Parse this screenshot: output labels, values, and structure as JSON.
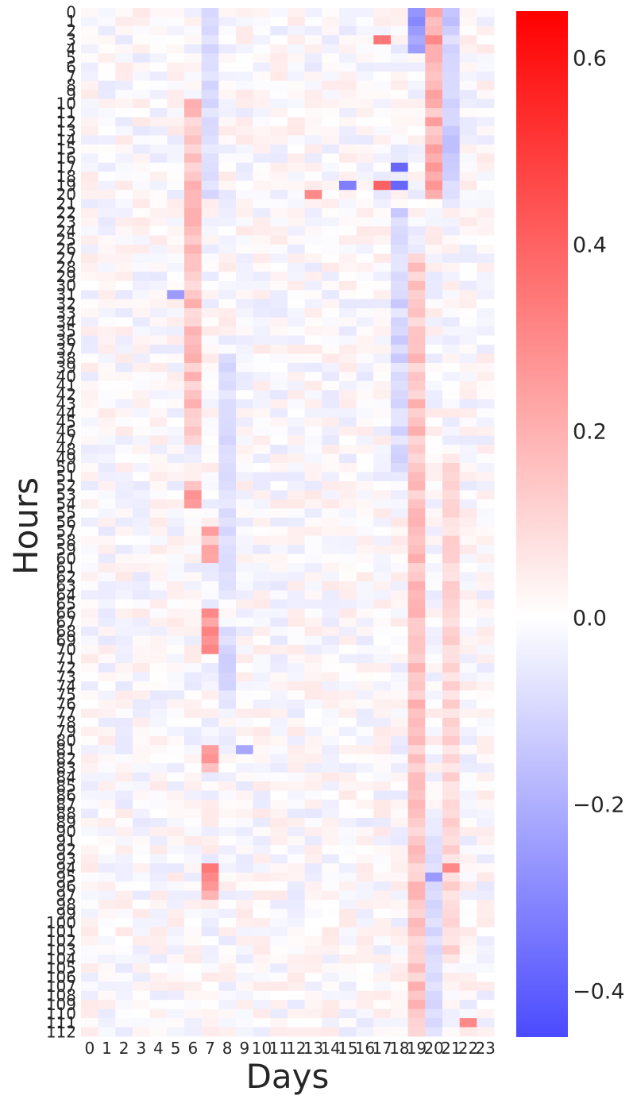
{
  "chart_data": {
    "type": "heatmap",
    "title": "",
    "xlabel": "Days",
    "ylabel": "Hours",
    "x_categories": [
      "0",
      "1",
      "2",
      "3",
      "4",
      "5",
      "6",
      "7",
      "8",
      "9",
      "10",
      "11",
      "12",
      "13",
      "14",
      "15",
      "16",
      "17",
      "18",
      "19",
      "20",
      "21",
      "22",
      "23"
    ],
    "y_range": [
      0,
      112
    ],
    "color_scale": {
      "min": -0.45,
      "max": 0.65,
      "center": 0.0,
      "low_color": "#4b4bff",
      "mid_color": "#ffffff",
      "high_color": "#ff0000"
    },
    "colorbar_ticks": [
      -0.4,
      -0.2,
      0.0,
      0.2,
      0.4,
      0.6
    ],
    "colorbar_tick_labels": [
      "−0.4",
      "−0.2",
      "0.0",
      "0.2",
      "0.4",
      "0.6"
    ],
    "notable_values": [
      {
        "day": 19,
        "hour": 1,
        "value": -0.3
      },
      {
        "day": 20,
        "hour": 3,
        "value": 0.3
      },
      {
        "day": 17,
        "hour": 3,
        "value": 0.35
      },
      {
        "day": 18,
        "hour": 17,
        "value": -0.38
      },
      {
        "day": 18,
        "hour": 19,
        "value": -0.38
      },
      {
        "day": 15,
        "hour": 19,
        "value": -0.32
      },
      {
        "day": 17,
        "hour": 19,
        "value": 0.4
      },
      {
        "day": 13,
        "hour": 20,
        "value": 0.3
      },
      {
        "day": 5,
        "hour": 31,
        "value": -0.25
      },
      {
        "day": 7,
        "hour": 66,
        "value": 0.3
      },
      {
        "day": 9,
        "hour": 81,
        "value": -0.22
      },
      {
        "day": 7,
        "hour": 95,
        "value": 0.3
      },
      {
        "day": 20,
        "hour": 95,
        "value": -0.25
      },
      {
        "day": 21,
        "hour": 94,
        "value": 0.3
      },
      {
        "day": 22,
        "hour": 111,
        "value": 0.3
      }
    ],
    "column_profiles": [
      {
        "day": 6,
        "hours": [
          10,
          47
        ],
        "value": 0.15
      },
      {
        "day": 6,
        "hours": [
          52,
          54
        ],
        "value": 0.2
      },
      {
        "day": 7,
        "hours": [
          0,
          20
        ],
        "value": -0.08
      },
      {
        "day": 7,
        "hours": [
          57,
          60
        ],
        "value": 0.18
      },
      {
        "day": 7,
        "hours": [
          66,
          70
        ],
        "value": 0.25
      },
      {
        "day": 7,
        "hours": [
          81,
          83
        ],
        "value": 0.25
      },
      {
        "day": 7,
        "hours": [
          94,
          97
        ],
        "value": 0.28
      },
      {
        "day": 8,
        "hours": [
          38,
          64
        ],
        "value": -0.08
      },
      {
        "day": 8,
        "hours": [
          68,
          76
        ],
        "value": -0.1
      },
      {
        "day": 18,
        "hours": [
          22,
          50
        ],
        "value": -0.1
      },
      {
        "day": 19,
        "hours": [
          0,
          4
        ],
        "value": -0.25
      },
      {
        "day": 19,
        "hours": [
          27,
          112
        ],
        "value": 0.15
      },
      {
        "day": 20,
        "hours": [
          0,
          20
        ],
        "value": 0.2
      },
      {
        "day": 20,
        "hours": [
          90,
          112
        ],
        "value": -0.08
      },
      {
        "day": 21,
        "hours": [
          0,
          20
        ],
        "value": -0.12
      },
      {
        "day": 21,
        "hours": [
          50,
          104
        ],
        "value": 0.1
      }
    ]
  }
}
